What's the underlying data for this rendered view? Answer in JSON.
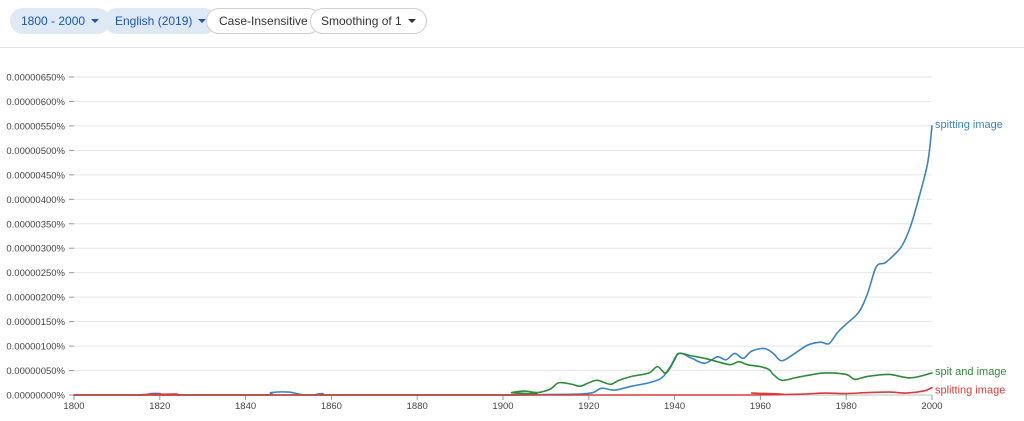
{
  "toolbar": {
    "year_range": "1800 - 2000",
    "corpus": "English (2019)",
    "case": "Case-Insensitive",
    "smoothing": "Smoothing of 1"
  },
  "chart_data": {
    "type": "line",
    "title": "",
    "xlabel": "",
    "ylabel": "",
    "xlim": [
      1800,
      2000
    ],
    "ylim": [
      0,
      6.5e-06
    ],
    "x_ticks": [
      1800,
      1820,
      1840,
      1860,
      1880,
      1900,
      1920,
      1940,
      1960,
      1980,
      2000
    ],
    "x_tick_labels": [
      "1800",
      "1820",
      "1840",
      "1860",
      "1880",
      "1900",
      "1920",
      "1940",
      "1960",
      "1980",
      "2000"
    ],
    "y_ticks": [
      0,
      5e-07,
      1e-06,
      1.5e-06,
      2e-06,
      2.5e-06,
      3e-06,
      3.5e-06,
      4e-06,
      4.5e-06,
      5e-06,
      5.5e-06,
      6e-06,
      6.5e-06
    ],
    "y_tick_labels": [
      "0.00000000%",
      "0.00000050%",
      "0.00000100%",
      "0.00000150%",
      "0.00000200%",
      "0.00000250%",
      "0.00000300%",
      "0.00000350%",
      "0.00000400%",
      "0.00000450%",
      "0.00000500%",
      "0.00000550%",
      "0.00000600%",
      "0.00000650%"
    ],
    "grid": true,
    "legend": "end-of-line labels",
    "series": [
      {
        "name": "spitting image",
        "color": "#3a84c4",
        "points": [
          [
            1800,
            0
          ],
          [
            1815,
            0
          ],
          [
            1818,
            3e-08
          ],
          [
            1820,
            3e-08
          ],
          [
            1822,
            0
          ],
          [
            1844,
            0
          ],
          [
            1846,
            5e-08
          ],
          [
            1850,
            6e-08
          ],
          [
            1853,
            1e-08
          ],
          [
            1856,
            0
          ],
          [
            1858,
            3e-08
          ],
          [
            1860,
            0
          ],
          [
            1900,
            0
          ],
          [
            1910,
            1e-08
          ],
          [
            1918,
            2e-08
          ],
          [
            1921,
            5e-08
          ],
          [
            1923,
            1.4e-07
          ],
          [
            1926,
            1e-07
          ],
          [
            1930,
            1.8e-07
          ],
          [
            1934,
            2.5e-07
          ],
          [
            1937,
            3.5e-07
          ],
          [
            1939,
            5.8e-07
          ],
          [
            1941,
            8.5e-07
          ],
          [
            1944,
            7.5e-07
          ],
          [
            1947,
            6.5e-07
          ],
          [
            1950,
            7.8e-07
          ],
          [
            1952,
            7.2e-07
          ],
          [
            1954,
            8.5e-07
          ],
          [
            1956,
            7.5e-07
          ],
          [
            1958,
            9e-07
          ],
          [
            1961,
            9.5e-07
          ],
          [
            1963,
            8.5e-07
          ],
          [
            1965,
            7e-07
          ],
          [
            1968,
            8.5e-07
          ],
          [
            1971,
            1.02e-06
          ],
          [
            1974,
            1.08e-06
          ],
          [
            1976,
            1.05e-06
          ],
          [
            1978,
            1.28e-06
          ],
          [
            1980,
            1.45e-06
          ],
          [
            1983,
            1.7e-06
          ],
          [
            1985,
            2.08e-06
          ],
          [
            1987,
            2.62e-06
          ],
          [
            1989,
            2.7e-06
          ],
          [
            1991,
            2.85e-06
          ],
          [
            1993,
            3.05e-06
          ],
          [
            1995,
            3.45e-06
          ],
          [
            1997,
            4.05e-06
          ],
          [
            1999,
            4.75e-06
          ],
          [
            2000,
            5.5e-06
          ]
        ]
      },
      {
        "name": "spit and image",
        "color": "#2e8b3a",
        "points": [
          [
            1800,
            0
          ],
          [
            1900,
            0
          ],
          [
            1902,
            5e-08
          ],
          [
            1905,
            8e-08
          ],
          [
            1908,
            5e-08
          ],
          [
            1911,
            1.2e-07
          ],
          [
            1913,
            2.5e-07
          ],
          [
            1916,
            2.2e-07
          ],
          [
            1918,
            1.8e-07
          ],
          [
            1920,
            2.5e-07
          ],
          [
            1922,
            3e-07
          ],
          [
            1925,
            2.2e-07
          ],
          [
            1927,
            3e-07
          ],
          [
            1930,
            3.8e-07
          ],
          [
            1934,
            4.5e-07
          ],
          [
            1936,
            5.8e-07
          ],
          [
            1938,
            4.5e-07
          ],
          [
            1940,
            7.2e-07
          ],
          [
            1941,
            8.5e-07
          ],
          [
            1944,
            8e-07
          ],
          [
            1947,
            7.5e-07
          ],
          [
            1950,
            6.8e-07
          ],
          [
            1953,
            6.2e-07
          ],
          [
            1955,
            6.8e-07
          ],
          [
            1957,
            6.2e-07
          ],
          [
            1960,
            5.8e-07
          ],
          [
            1962,
            5.2e-07
          ],
          [
            1963,
            4.2e-07
          ],
          [
            1965,
            3e-07
          ],
          [
            1968,
            3.5e-07
          ],
          [
            1971,
            4e-07
          ],
          [
            1975,
            4.5e-07
          ],
          [
            1980,
            4.2e-07
          ],
          [
            1982,
            3.2e-07
          ],
          [
            1985,
            3.8e-07
          ],
          [
            1990,
            4.2e-07
          ],
          [
            1995,
            3.5e-07
          ],
          [
            2000,
            4.5e-07
          ]
        ]
      },
      {
        "name": "splitting image",
        "color": "#d93a3a",
        "points": [
          [
            1800,
            0
          ],
          [
            1822,
            0
          ],
          [
            1824,
            2e-08
          ],
          [
            1826,
            0
          ],
          [
            1955,
            0
          ],
          [
            1958,
            4e-08
          ],
          [
            1960,
            3e-08
          ],
          [
            1963,
            1e-08
          ],
          [
            1970,
            2e-08
          ],
          [
            1975,
            4e-08
          ],
          [
            1980,
            3e-08
          ],
          [
            1985,
            5e-08
          ],
          [
            1990,
            6e-08
          ],
          [
            1994,
            4e-08
          ],
          [
            1998,
            8e-08
          ],
          [
            2000,
            1.5e-07
          ]
        ]
      }
    ]
  }
}
